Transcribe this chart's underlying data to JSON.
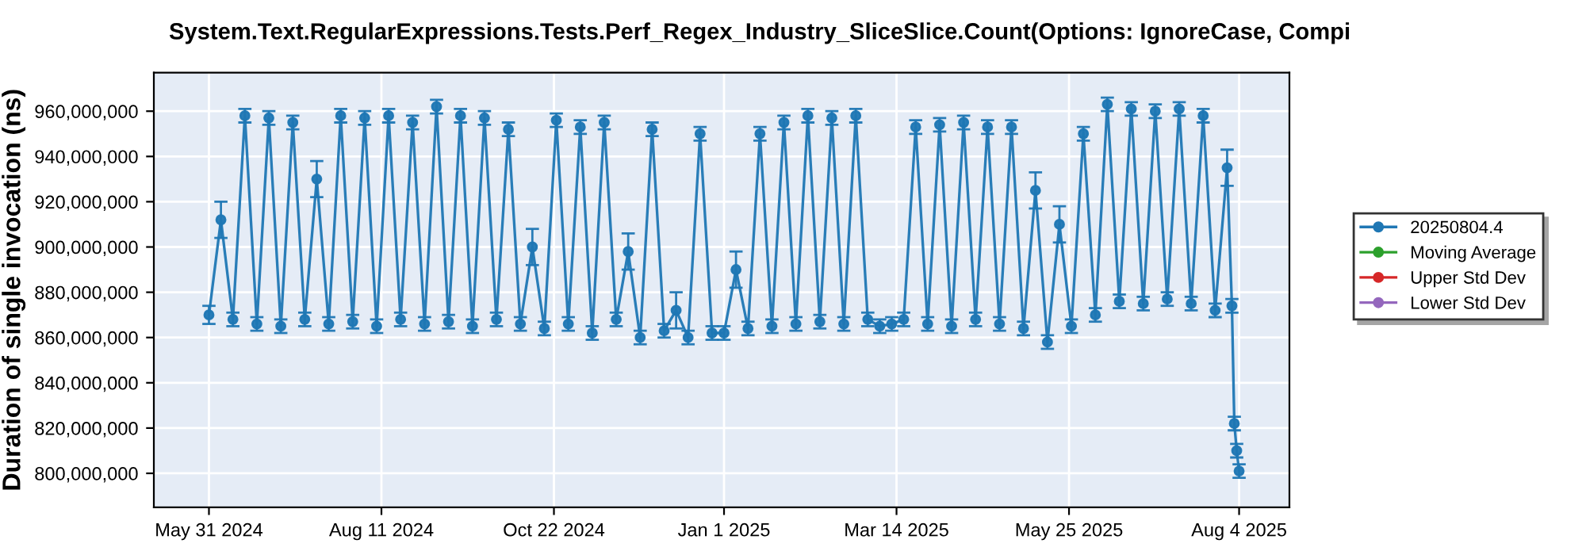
{
  "chart_data": {
    "type": "line",
    "title": "System.Text.RegularExpressions.Tests.Perf_Regex_Industry_SliceSlice.Count(Options: IgnoreCase, Compi",
    "ylabel": "Duration of single invocation (ns)",
    "x": [
      "2024-05-31",
      "2024-06-05",
      "2024-06-10",
      "2024-06-15",
      "2024-06-20",
      "2024-06-25",
      "2024-06-30",
      "2024-07-05",
      "2024-07-10",
      "2024-07-15",
      "2024-07-20",
      "2024-07-25",
      "2024-07-30",
      "2024-08-04",
      "2024-08-09",
      "2024-08-14",
      "2024-08-19",
      "2024-08-24",
      "2024-08-29",
      "2024-09-03",
      "2024-09-08",
      "2024-09-13",
      "2024-09-18",
      "2024-09-23",
      "2024-09-28",
      "2024-10-03",
      "2024-10-08",
      "2024-10-13",
      "2024-10-18",
      "2024-10-23",
      "2024-10-28",
      "2024-11-02",
      "2024-11-07",
      "2024-11-12",
      "2024-11-17",
      "2024-11-22",
      "2024-11-27",
      "2024-12-02",
      "2024-12-07",
      "2024-12-12",
      "2024-12-17",
      "2024-12-22",
      "2024-12-27",
      "2025-01-01",
      "2025-01-06",
      "2025-01-11",
      "2025-01-16",
      "2025-01-21",
      "2025-01-26",
      "2025-01-31",
      "2025-02-05",
      "2025-02-10",
      "2025-02-15",
      "2025-02-20",
      "2025-02-25",
      "2025-03-02",
      "2025-03-07",
      "2025-03-12",
      "2025-03-17",
      "2025-03-22",
      "2025-03-27",
      "2025-04-01",
      "2025-04-06",
      "2025-04-11",
      "2025-04-16",
      "2025-04-21",
      "2025-04-26",
      "2025-05-01",
      "2025-05-06",
      "2025-05-11",
      "2025-05-16",
      "2025-05-21",
      "2025-05-26",
      "2025-05-31",
      "2025-06-05",
      "2025-06-10",
      "2025-06-15",
      "2025-06-20",
      "2025-06-25",
      "2025-06-30",
      "2025-07-05",
      "2025-07-10",
      "2025-07-15",
      "2025-07-20",
      "2025-07-25",
      "2025-07-30",
      "2025-08-01",
      "2025-08-02",
      "2025-08-03",
      "2025-08-04"
    ],
    "series": [
      {
        "name": "20250804.4",
        "color": "#1f77b4",
        "values": [
          870000000,
          912000000,
          868000000,
          958000000,
          866000000,
          957000000,
          865000000,
          955000000,
          868000000,
          930000000,
          866000000,
          958000000,
          867000000,
          957000000,
          865000000,
          958000000,
          868000000,
          955000000,
          866000000,
          962000000,
          867000000,
          958000000,
          865000000,
          957000000,
          868000000,
          952000000,
          866000000,
          900000000,
          864000000,
          956000000,
          866000000,
          953000000,
          862000000,
          955000000,
          868000000,
          898000000,
          860000000,
          952000000,
          863000000,
          872000000,
          860000000,
          950000000,
          862000000,
          862000000,
          890000000,
          864000000,
          950000000,
          865000000,
          955000000,
          866000000,
          958000000,
          867000000,
          957000000,
          866000000,
          958000000,
          868000000,
          865000000,
          866000000,
          868000000,
          953000000,
          866000000,
          954000000,
          865000000,
          955000000,
          868000000,
          953000000,
          866000000,
          953000000,
          864000000,
          925000000,
          858000000,
          910000000,
          865000000,
          950000000,
          870000000,
          963000000,
          876000000,
          961000000,
          875000000,
          960000000,
          877000000,
          961000000,
          875000000,
          958000000,
          872000000,
          935000000,
          874000000,
          822000000,
          810000000,
          801000000
        ],
        "errors": [
          4000000,
          8000000,
          3000000,
          3000000,
          3000000,
          3000000,
          3000000,
          3000000,
          3000000,
          8000000,
          3000000,
          3000000,
          3000000,
          3000000,
          3000000,
          3000000,
          3000000,
          3000000,
          3000000,
          3000000,
          3000000,
          3000000,
          3000000,
          3000000,
          3000000,
          3000000,
          3000000,
          8000000,
          3000000,
          3000000,
          3000000,
          3000000,
          3000000,
          3000000,
          3000000,
          8000000,
          3000000,
          3000000,
          3000000,
          8000000,
          3000000,
          3000000,
          3000000,
          3000000,
          8000000,
          3000000,
          3000000,
          3000000,
          3000000,
          3000000,
          3000000,
          3000000,
          3000000,
          3000000,
          3000000,
          3000000,
          3000000,
          3000000,
          3000000,
          3000000,
          3000000,
          3000000,
          3000000,
          3000000,
          3000000,
          3000000,
          3000000,
          3000000,
          3000000,
          8000000,
          3000000,
          8000000,
          3000000,
          3000000,
          3000000,
          3000000,
          3000000,
          3000000,
          3000000,
          3000000,
          3000000,
          3000000,
          3000000,
          3000000,
          3000000,
          8000000,
          3000000,
          3000000,
          3000000,
          3000000
        ]
      },
      {
        "name": "Moving Average",
        "color": "#2ca02c",
        "values": [
          null,
          null,
          null,
          null,
          null,
          null,
          null,
          null,
          null,
          null,
          null,
          null,
          null,
          null,
          null,
          null,
          null,
          null,
          null,
          null,
          null,
          null,
          null,
          null,
          null,
          null,
          null,
          null,
          null,
          null,
          null,
          null,
          null,
          null,
          null,
          null,
          null,
          null,
          null,
          null,
          null,
          null,
          null,
          null,
          null,
          null,
          null,
          null,
          null,
          null,
          null,
          null,
          null,
          null,
          null,
          null,
          null,
          null,
          null,
          null,
          null,
          null,
          null,
          null,
          null,
          null,
          null,
          null,
          null,
          null,
          null,
          null,
          null,
          null,
          null,
          null,
          null,
          null,
          null,
          null,
          null,
          null,
          null,
          null,
          null,
          null,
          null,
          null,
          null,
          null
        ]
      },
      {
        "name": "Upper Std Dev",
        "color": "#d62728",
        "values": [
          null,
          null,
          null,
          null,
          null,
          null,
          null,
          null,
          null,
          null,
          null,
          null,
          null,
          null,
          null,
          null,
          null,
          null,
          null,
          null,
          null,
          null,
          null,
          null,
          null,
          null,
          null,
          null,
          null,
          null,
          null,
          null,
          null,
          null,
          null,
          null,
          null,
          null,
          null,
          null,
          null,
          null,
          null,
          null,
          null,
          null,
          null,
          null,
          null,
          null,
          null,
          null,
          null,
          null,
          null,
          null,
          null,
          null,
          null,
          null,
          null,
          null,
          null,
          null,
          null,
          null,
          null,
          null,
          null,
          null,
          null,
          null,
          null,
          null,
          null,
          null,
          null,
          null,
          null,
          null,
          null,
          null,
          null,
          null,
          null,
          null,
          null,
          null,
          null,
          null
        ]
      },
      {
        "name": "Lower Std Dev",
        "color": "#9467bd",
        "values": [
          null,
          null,
          null,
          null,
          null,
          null,
          null,
          null,
          null,
          null,
          null,
          null,
          null,
          null,
          null,
          null,
          null,
          null,
          null,
          null,
          null,
          null,
          null,
          null,
          null,
          null,
          null,
          null,
          null,
          null,
          null,
          null,
          null,
          null,
          null,
          null,
          null,
          null,
          null,
          null,
          null,
          null,
          null,
          null,
          null,
          null,
          null,
          null,
          null,
          null,
          null,
          null,
          null,
          null,
          null,
          null,
          null,
          null,
          null,
          null,
          null,
          null,
          null,
          null,
          null,
          null,
          null,
          null,
          null,
          null,
          null,
          null,
          null,
          null,
          null,
          null,
          null,
          null,
          null,
          null,
          null,
          null,
          null,
          null,
          null,
          null,
          null,
          null,
          null,
          null
        ]
      }
    ],
    "xlim": [
      "2024-05-08",
      "2025-08-25"
    ],
    "xticks": [
      {
        "value": "2024-05-31",
        "label": "May 31 2024"
      },
      {
        "value": "2024-08-11",
        "label": "Aug 11 2024"
      },
      {
        "value": "2024-10-22",
        "label": "Oct 22 2024"
      },
      {
        "value": "2025-01-01",
        "label": "Jan 1 2025"
      },
      {
        "value": "2025-03-14",
        "label": "Mar 14 2025"
      },
      {
        "value": "2025-05-25",
        "label": "May 25 2025"
      },
      {
        "value": "2025-08-04",
        "label": "Aug 4 2025"
      }
    ],
    "ylim": [
      785000000,
      977000000
    ],
    "yticks": [
      {
        "value": 800000000,
        "label": "800,000,000"
      },
      {
        "value": 820000000,
        "label": "820,000,000"
      },
      {
        "value": 840000000,
        "label": "840,000,000"
      },
      {
        "value": 860000000,
        "label": "860,000,000"
      },
      {
        "value": 880000000,
        "label": "880,000,000"
      },
      {
        "value": 900000000,
        "label": "900,000,000"
      },
      {
        "value": 920000000,
        "label": "920,000,000"
      },
      {
        "value": 940000000,
        "label": "940,000,000"
      },
      {
        "value": 960000000,
        "label": "960,000,000"
      }
    ],
    "grid": true,
    "legend": "right",
    "marker": "circle",
    "line_style": "solid"
  }
}
